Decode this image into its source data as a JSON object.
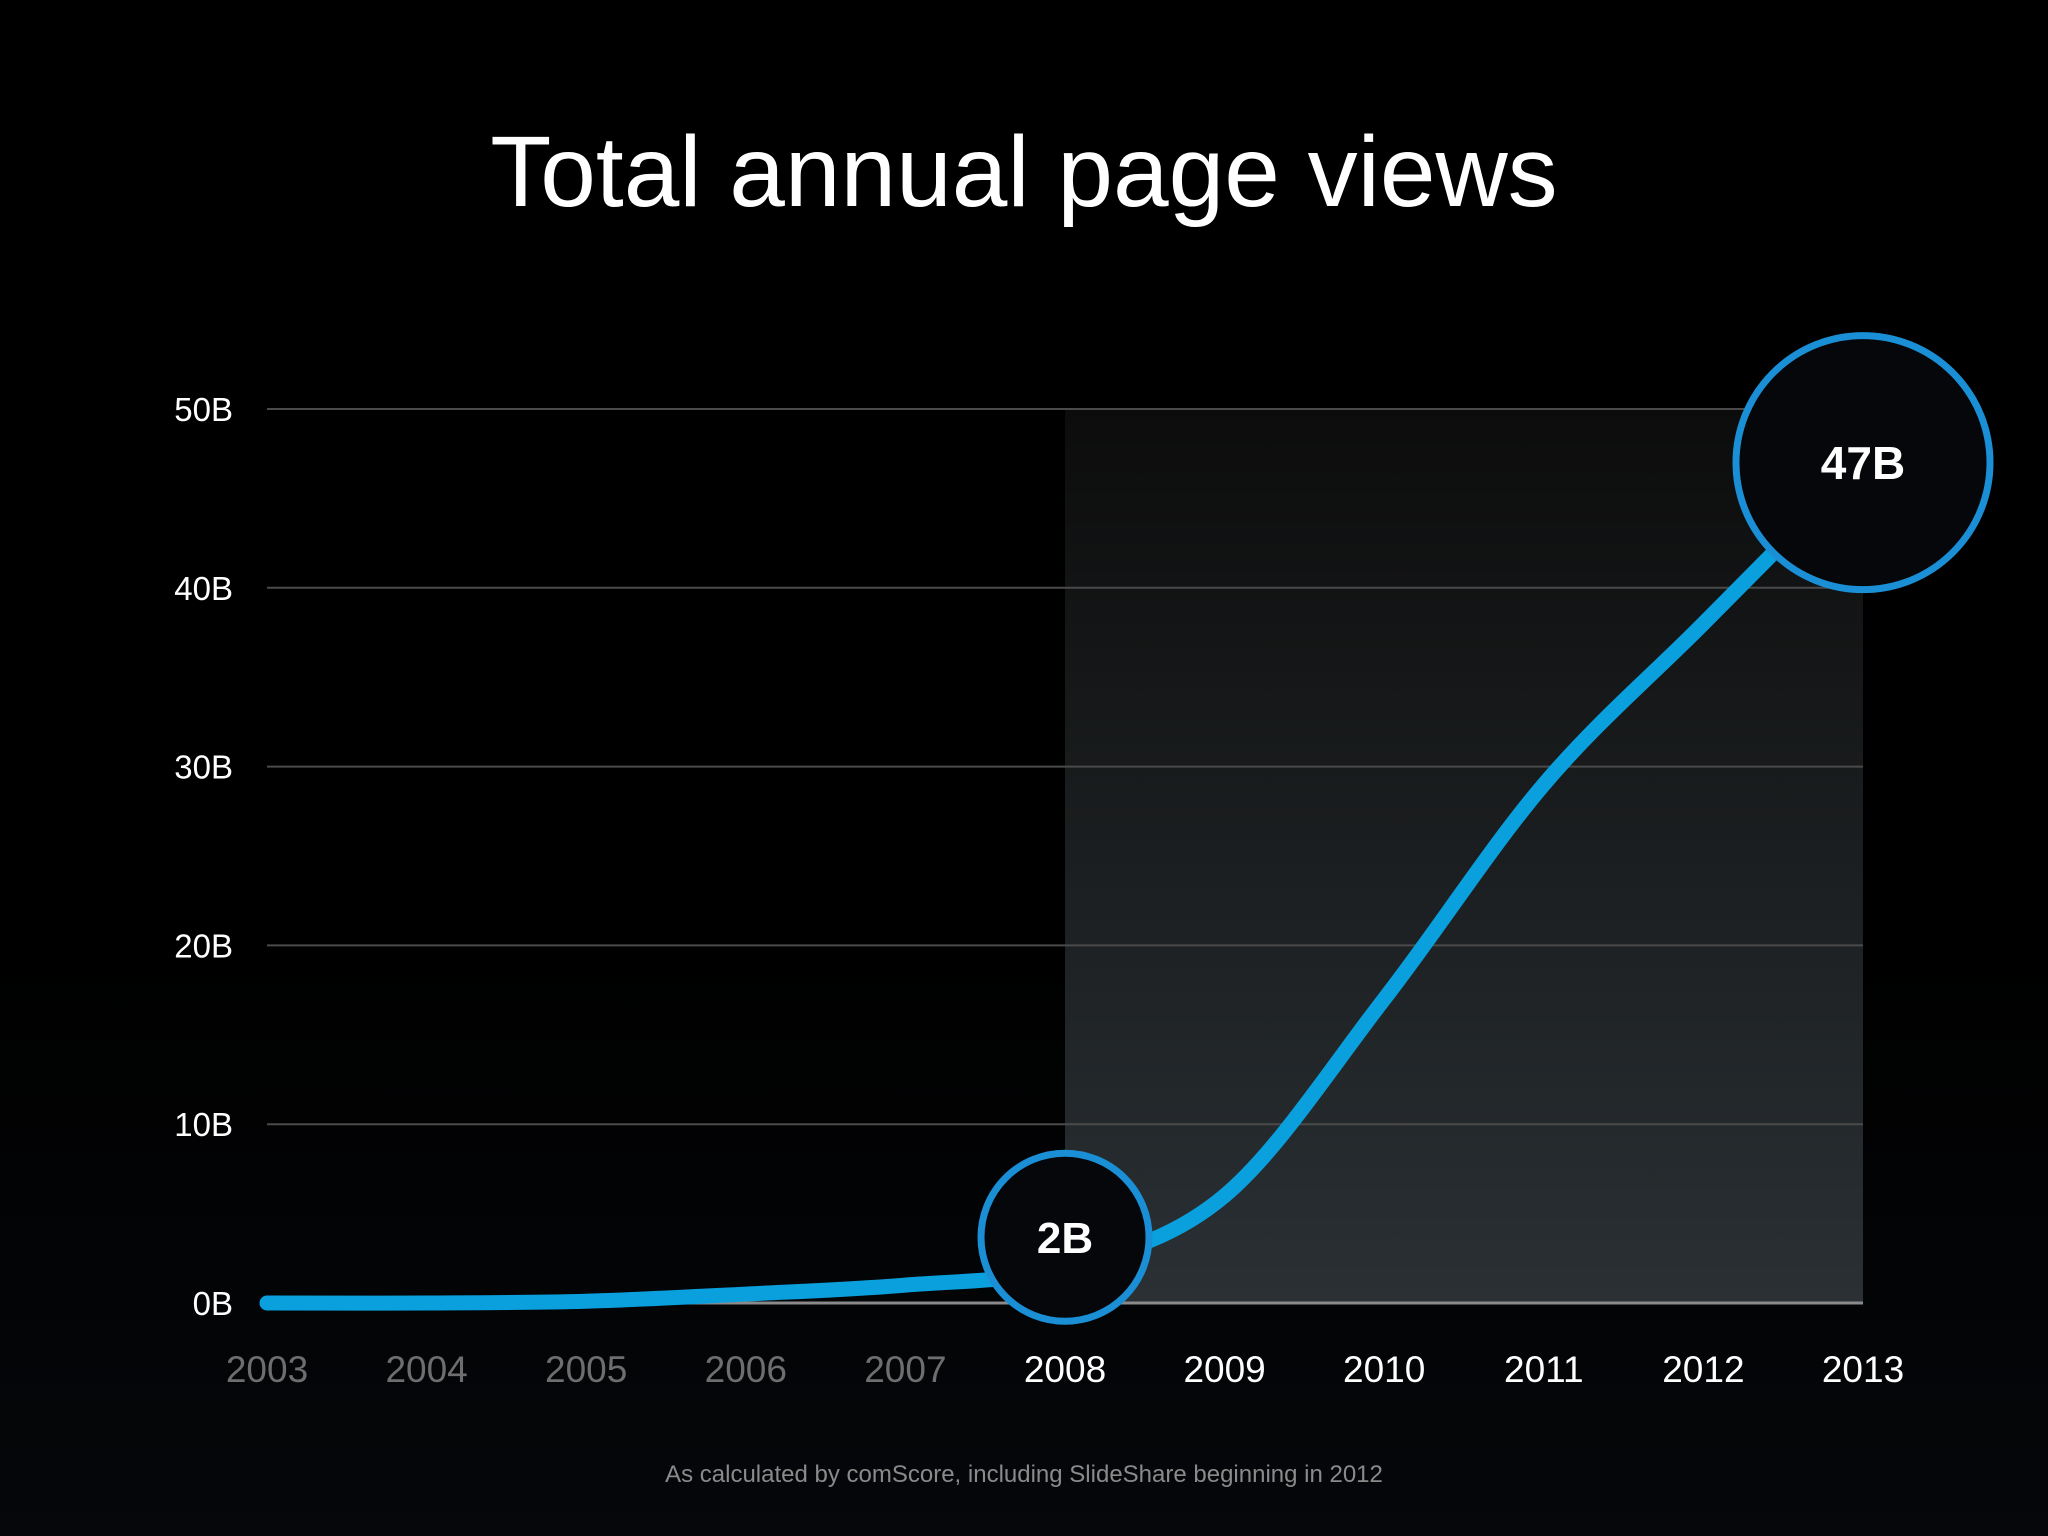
{
  "footnote": "As calculated by comScore, including SlideShare beginning in 2012",
  "colors": {
    "background": "#000000",
    "line": "#0aa0dd",
    "bubble_ring": "#1a8fd6",
    "bubble_fill": "#05070a",
    "grid": "#4a4a4a",
    "shaded_region": "#1f2529",
    "x_label_dim": "#6e6e6e",
    "x_label_bright": "#ffffff"
  },
  "chart_data": {
    "type": "line",
    "title": "Total annual page views",
    "xlabel": "",
    "ylabel": "",
    "x": [
      "2003",
      "2004",
      "2005",
      "2006",
      "2007",
      "2008",
      "2009",
      "2010",
      "2011",
      "2012",
      "2013"
    ],
    "series": [
      {
        "values": [
          0.0,
          0.0,
          0.1,
          0.5,
          1.0,
          2.0,
          6.0,
          17.0,
          29.0,
          38.0,
          47.0
        ]
      }
    ],
    "y_ticks": [
      {
        "value": 0,
        "label": "0B"
      },
      {
        "value": 10,
        "label": "10B"
      },
      {
        "value": 20,
        "label": "20B"
      },
      {
        "value": 30,
        "label": "30B"
      },
      {
        "value": 40,
        "label": "40B"
      },
      {
        "value": 50,
        "label": "50B"
      }
    ],
    "ylim": [
      0,
      50
    ],
    "grid": true,
    "highlight_range": [
      "2008",
      "2013"
    ],
    "annotations": [
      {
        "x": "2008",
        "y": 2,
        "label": "2B",
        "size": "small"
      },
      {
        "x": "2013",
        "y": 47,
        "label": "47B",
        "size": "large"
      }
    ]
  }
}
